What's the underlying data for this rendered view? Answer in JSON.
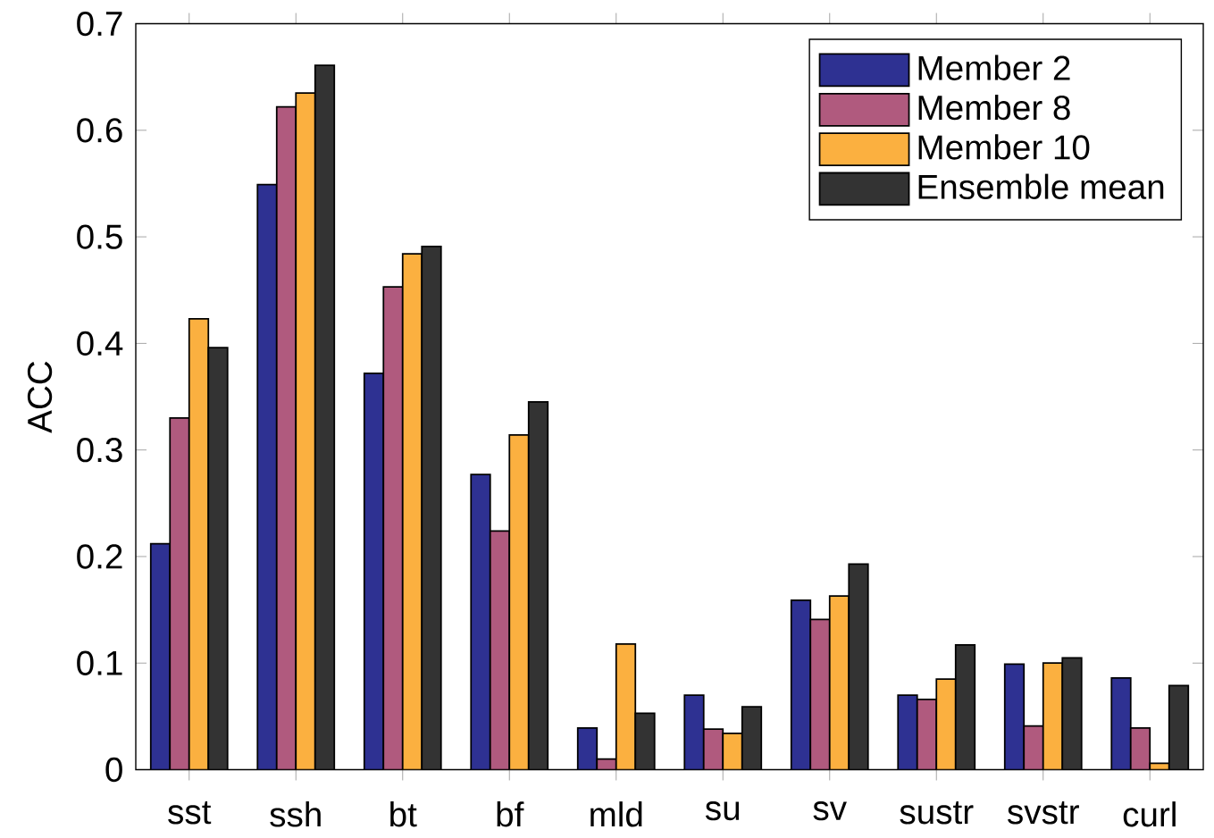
{
  "chart_data": {
    "type": "bar",
    "ylabel": "ACC",
    "categories": [
      "sst",
      "ssh",
      "bt",
      "bf",
      "mld",
      "su",
      "sv",
      "sustr",
      "svstr",
      "curl"
    ],
    "series": [
      {
        "name": "Member 2",
        "color": "#2e3192",
        "values": [
          0.212,
          0.549,
          0.372,
          0.277,
          0.039,
          0.07,
          0.159,
          0.07,
          0.099,
          0.086
        ]
      },
      {
        "name": "Member 8",
        "color": "#b05a7e",
        "values": [
          0.33,
          0.622,
          0.453,
          0.224,
          0.01,
          0.038,
          0.141,
          0.066,
          0.041,
          0.039
        ]
      },
      {
        "name": "Member 10",
        "color": "#fbb040",
        "values": [
          0.423,
          0.635,
          0.484,
          0.314,
          0.118,
          0.034,
          0.163,
          0.085,
          0.1,
          0.006
        ]
      },
      {
        "name": "Ensemble mean",
        "color": "#333333",
        "values": [
          0.396,
          0.661,
          0.491,
          0.345,
          0.053,
          0.059,
          0.193,
          0.117,
          0.105,
          0.079
        ]
      }
    ],
    "ylim": [
      0,
      0.7
    ],
    "yticks": [
      0,
      0.1,
      0.2,
      0.3,
      0.4,
      0.5,
      0.6,
      0.7
    ],
    "legend": "top right"
  }
}
